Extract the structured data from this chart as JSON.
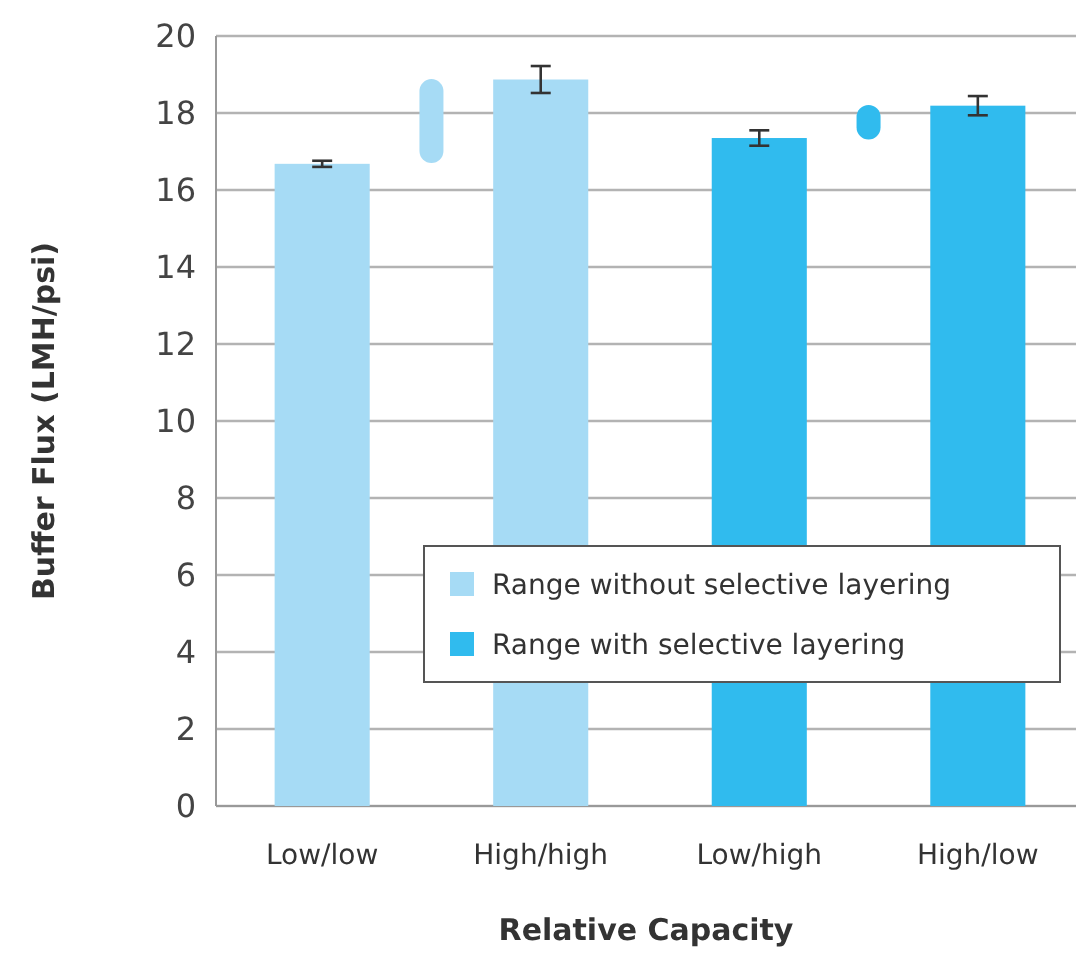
{
  "chart_data": {
    "type": "bar",
    "xlabel": "Relative Capacity",
    "ylabel": "Buffer Flux (LMH/psi)",
    "categories": [
      "Low/low",
      null,
      "High/high",
      null,
      "Low/high",
      null,
      "High/low"
    ],
    "ylim": [
      0,
      20
    ],
    "yticks": [
      0,
      2,
      4,
      6,
      8,
      10,
      12,
      14,
      16,
      18,
      20
    ],
    "grid": "y",
    "legend": "bottom right",
    "series": [
      {
        "values": [
          16.68,
          null,
          18.87,
          null,
          17.35,
          null,
          18.19
        ],
        "colors": [
          "#a6dbf5",
          null,
          "#a6dbf5",
          null,
          "#30bbee",
          null,
          "#30bbee"
        ],
        "errors": [
          0.08,
          null,
          0.35,
          null,
          0.2,
          null,
          0.25
        ]
      },
      {
        "name": "Range without selective layering",
        "color": "#a6dbf5",
        "base": [
          null,
          16.7,
          null,
          null,
          null,
          null,
          null
        ],
        "values": [
          null,
          2.18,
          null,
          null,
          null,
          null,
          null
        ]
      },
      {
        "name": "Range with selective layering",
        "color": "#30bbee",
        "base": [
          null,
          null,
          null,
          null,
          null,
          17.31,
          null
        ],
        "values": [
          null,
          null,
          null,
          null,
          null,
          0.9,
          null
        ]
      }
    ]
  }
}
